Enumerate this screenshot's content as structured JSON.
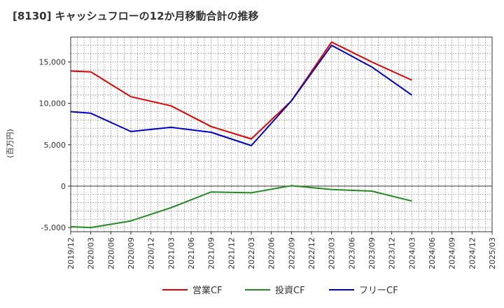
{
  "chart_data": {
    "type": "line",
    "title": "[8130]  キャッシュフローの12か月移動合計の推移",
    "ylabel": "(百万円)",
    "xlabel": "",
    "ylim": [
      -5500,
      18000
    ],
    "yticks": [
      -5000,
      0,
      5000,
      10000,
      15000
    ],
    "ytick_labels": [
      "-5,000",
      "0",
      "5,000",
      "10,000",
      "15,000"
    ],
    "x_labels": [
      "2019/12",
      "2020/03",
      "2020/06",
      "2020/09",
      "2020/12",
      "2021/03",
      "2021/06",
      "2021/09",
      "2021/12",
      "2022/03",
      "2022/06",
      "2022/09",
      "2022/12",
      "2023/03",
      "2023/06",
      "2023/09",
      "2023/12",
      "2024/03",
      "2024/06",
      "2024/09",
      "2024/12",
      "2025/03"
    ],
    "grid": true,
    "legend_position": "bottom",
    "series": [
      {
        "name": "営業CF",
        "color": "#e60000",
        "values": [
          13900,
          13800,
          null,
          10800,
          null,
          9700,
          null,
          7200,
          null,
          5700,
          null,
          10300,
          null,
          17400,
          null,
          15000,
          null,
          12800,
          null,
          null,
          null,
          null
        ]
      },
      {
        "name": "投資CF",
        "color": "#228b22",
        "values": [
          -4900,
          -5000,
          null,
          -4200,
          null,
          -2600,
          null,
          -700,
          null,
          -800,
          null,
          50,
          null,
          -400,
          null,
          -600,
          null,
          -1800,
          null,
          null,
          null,
          null
        ]
      },
      {
        "name": "フリーCF",
        "color": "#0000cc",
        "values": [
          9000,
          8800,
          null,
          6600,
          null,
          7100,
          null,
          6500,
          null,
          4900,
          null,
          10300,
          null,
          17000,
          null,
          14400,
          null,
          11000,
          null,
          null,
          null,
          null
        ]
      }
    ]
  }
}
